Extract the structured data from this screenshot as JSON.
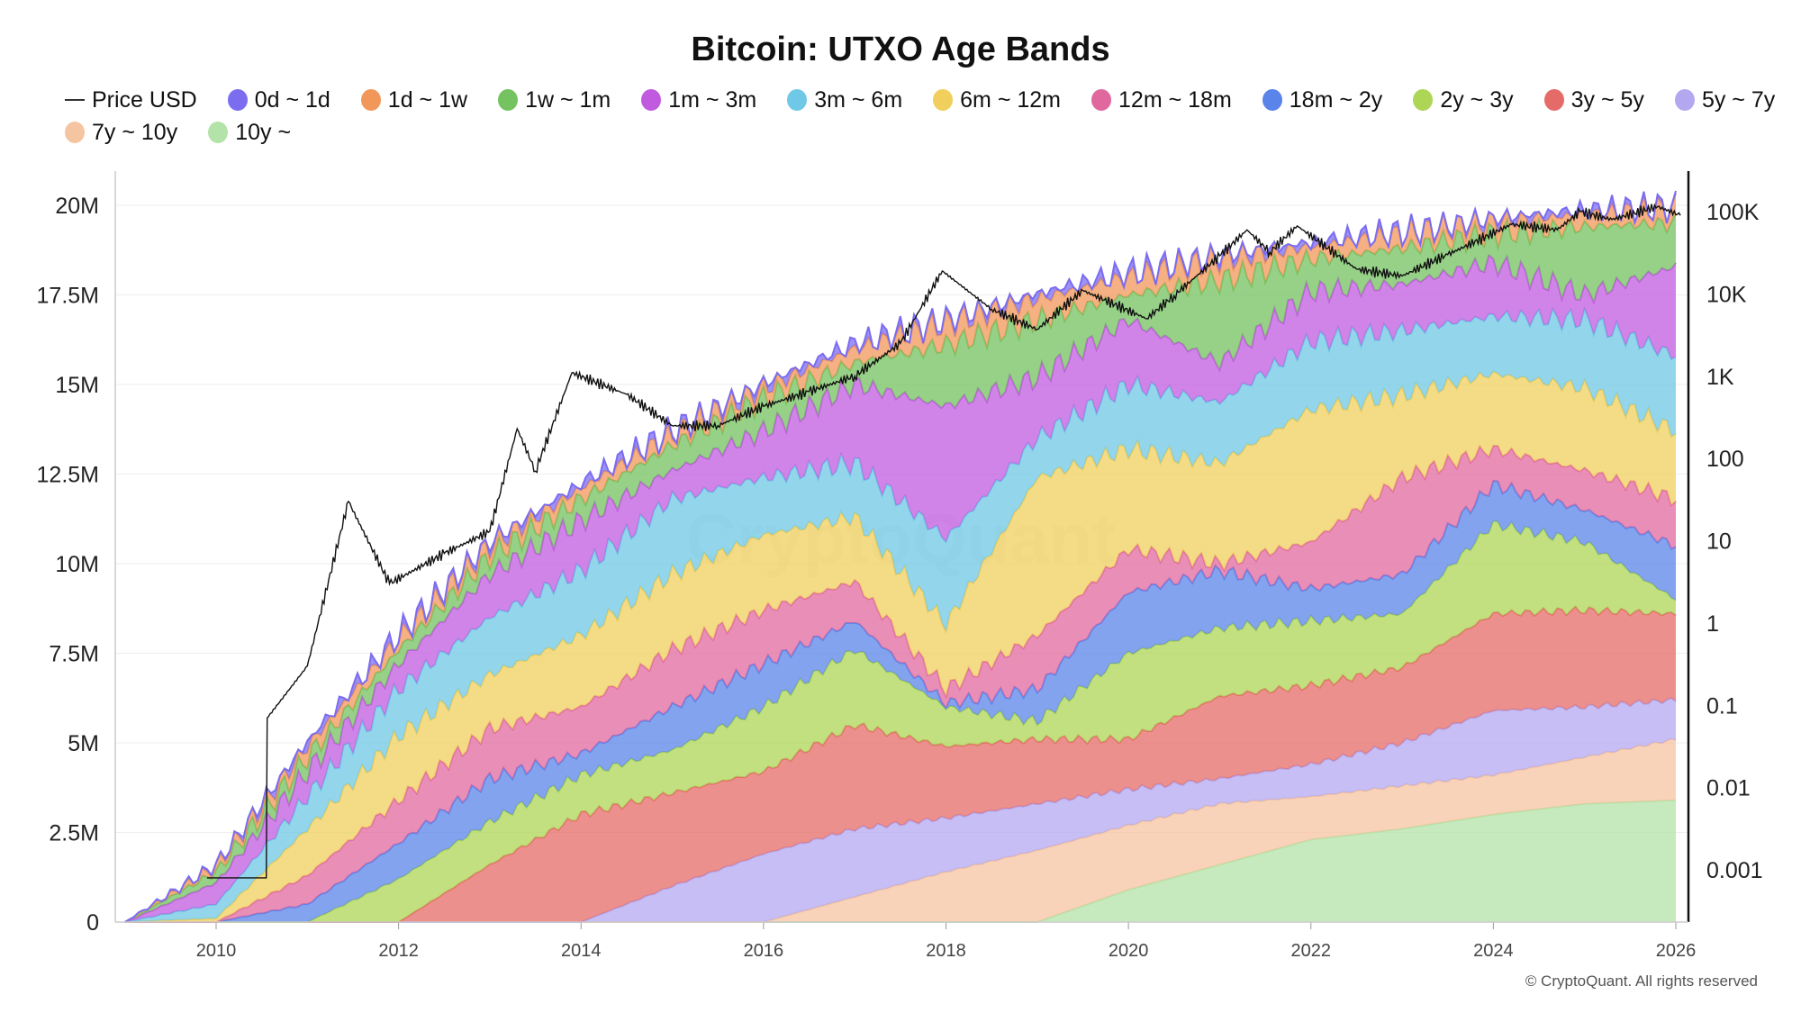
{
  "chart_data": {
    "type": "area",
    "stacked": true,
    "title": "Bitcoin: UTXO Age Bands",
    "xlabel": "",
    "ylabel": "",
    "x_ticks": [
      "2010",
      "2012",
      "2014",
      "2016",
      "2018",
      "2020",
      "2022",
      "2024",
      "2026"
    ],
    "y_ticks": [
      "0",
      "2.5M",
      "5M",
      "7.5M",
      "10M",
      "12.5M",
      "15M",
      "17.5M",
      "20M"
    ],
    "y2_ticks": [
      "0.001",
      "0.01",
      "0.1",
      "1",
      "10",
      "100",
      "1K",
      "10K",
      "100K"
    ],
    "ylim": [
      0,
      20000000
    ],
    "y2_scale": "log",
    "y2lim": [
      0.001,
      100000
    ],
    "grid": true,
    "legend_position": "top-left",
    "years": [
      2009,
      2010,
      2011,
      2012,
      2013,
      2014,
      2015,
      2016,
      2017,
      2018,
      2019,
      2020,
      2021,
      2022,
      2023,
      2024,
      2025,
      2026
    ],
    "series_note": "cumulative = stacked top of each band in millions BTC, bands listed bottom to top",
    "series": [
      {
        "name": "10y ~",
        "color": "#b3e3a8",
        "cumulative": [
          0,
          0,
          0,
          0,
          0,
          0,
          0,
          0,
          0,
          0,
          0,
          0.9,
          1.6,
          2.3,
          2.6,
          3.0,
          3.3,
          3.4
        ]
      },
      {
        "name": "7y ~ 10y",
        "color": "#f5c4a1",
        "cumulative": [
          0,
          0,
          0,
          0,
          0,
          0,
          0,
          0,
          0.7,
          1.4,
          2.0,
          2.7,
          3.3,
          3.5,
          3.8,
          4.1,
          4.6,
          5.1
        ]
      },
      {
        "name": "5y ~ 7y",
        "color": "#b3a8f0",
        "cumulative": [
          0,
          0,
          0,
          0,
          0,
          0,
          1.0,
          1.9,
          2.6,
          2.9,
          3.3,
          3.7,
          4.0,
          4.4,
          5.0,
          5.9,
          6.0,
          6.2
        ]
      },
      {
        "name": "3y ~ 5y",
        "color": "#e56b68",
        "cumulative": [
          0,
          0,
          0,
          0,
          1.6,
          3.0,
          3.6,
          4.2,
          5.5,
          4.9,
          5.1,
          5.1,
          6.3,
          6.6,
          7.1,
          8.6,
          8.7,
          8.6
        ]
      },
      {
        "name": "2y ~ 3y",
        "color": "#aed656",
        "cumulative": [
          0,
          0,
          0,
          1.2,
          2.8,
          4.1,
          4.8,
          6.0,
          7.6,
          6.0,
          5.6,
          7.5,
          8.2,
          8.4,
          8.6,
          11.1,
          10.6,
          9.0
        ]
      },
      {
        "name": "18m ~ 2y",
        "color": "#5a84ea",
        "cumulative": [
          0,
          0,
          0.5,
          2.2,
          4.0,
          4.7,
          6.0,
          7.2,
          8.4,
          6.1,
          6.5,
          9.2,
          9.8,
          9.3,
          9.7,
          12.2,
          11.5,
          10.5
        ]
      },
      {
        "name": "12m ~ 18m",
        "color": "#e0689f",
        "cumulative": [
          0,
          0,
          1.3,
          3.4,
          5.4,
          6.0,
          7.6,
          8.7,
          9.5,
          6.5,
          8.0,
          10.4,
          10.0,
          10.6,
          12.4,
          13.2,
          12.6,
          11.8
        ]
      },
      {
        "name": "6m ~ 12m",
        "color": "#f0cf5c",
        "cumulative": [
          0,
          0.1,
          2.6,
          5.2,
          6.9,
          8.0,
          9.7,
          10.8,
          11.3,
          8.3,
          12.4,
          13.2,
          12.8,
          14.3,
          14.7,
          15.3,
          14.9,
          13.7
        ]
      },
      {
        "name": "3m ~ 6m",
        "color": "#6fc8e6",
        "cumulative": [
          0,
          0.5,
          3.5,
          6.5,
          8.5,
          9.8,
          11.8,
          12.4,
          12.8,
          10.7,
          13.5,
          15.0,
          14.5,
          16.2,
          16.5,
          16.9,
          16.8,
          15.8
        ]
      },
      {
        "name": "1m ~ 3m",
        "color": "#c05be0",
        "cumulative": [
          0,
          1.1,
          4.2,
          7.2,
          9.7,
          11.2,
          12.6,
          13.7,
          15.0,
          14.4,
          15.2,
          16.8,
          15.6,
          17.6,
          17.8,
          18.4,
          17.5,
          18.3
        ]
      },
      {
        "name": "1w ~ 1m",
        "color": "#74c260",
        "cumulative": [
          0,
          1.4,
          4.6,
          7.6,
          10.2,
          11.8,
          13.3,
          14.6,
          15.6,
          16.1,
          16.8,
          17.5,
          17.9,
          18.5,
          18.8,
          19.2,
          19.4,
          19.5
        ]
      },
      {
        "name": "1d ~ 1w",
        "color": "#f2975a",
        "cumulative": [
          0,
          1.55,
          4.9,
          7.9,
          10.5,
          12.1,
          13.6,
          14.9,
          16.0,
          16.7,
          17.4,
          18.0,
          18.5,
          18.85,
          19.2,
          19.55,
          19.75,
          19.92
        ]
      },
      {
        "name": "0d ~ 1d",
        "color": "#7b6cf0",
        "cumulative": [
          0,
          1.6,
          5.0,
          8.0,
          10.6,
          12.2,
          13.7,
          15.0,
          16.1,
          16.8,
          17.5,
          18.1,
          18.6,
          18.9,
          19.25,
          19.6,
          19.8,
          19.97
        ]
      }
    ],
    "price": {
      "name": "Price USD",
      "color": "#111111",
      "points": [
        [
          2009.9,
          0.0008
        ],
        [
          2010.55,
          0.0008
        ],
        [
          2010.56,
          0.07
        ],
        [
          2011.0,
          0.3
        ],
        [
          2011.45,
          30
        ],
        [
          2011.9,
          3
        ],
        [
          2012.5,
          7
        ],
        [
          2013.0,
          13
        ],
        [
          2013.3,
          230
        ],
        [
          2013.5,
          70
        ],
        [
          2013.9,
          1100
        ],
        [
          2014.5,
          600
        ],
        [
          2015.0,
          250
        ],
        [
          2015.5,
          250
        ],
        [
          2016.0,
          430
        ],
        [
          2016.5,
          650
        ],
        [
          2017.0,
          1000
        ],
        [
          2017.5,
          2500
        ],
        [
          2017.96,
          19000
        ],
        [
          2018.5,
          6500
        ],
        [
          2019.0,
          3700
        ],
        [
          2019.5,
          11000
        ],
        [
          2020.2,
          5000
        ],
        [
          2020.5,
          9500
        ],
        [
          2021.0,
          29000
        ],
        [
          2021.3,
          60000
        ],
        [
          2021.55,
          32000
        ],
        [
          2021.85,
          67000
        ],
        [
          2022.5,
          20000
        ],
        [
          2023.0,
          16500
        ],
        [
          2023.5,
          30000
        ],
        [
          2024.2,
          70000
        ],
        [
          2024.7,
          60000
        ],
        [
          2024.95,
          100000
        ],
        [
          2025.3,
          80000
        ],
        [
          2025.8,
          115000
        ],
        [
          2026.05,
          90000
        ]
      ]
    }
  },
  "legend": [
    "Price USD",
    "0d ~ 1d",
    "1d ~ 1w",
    "1w ~ 1m",
    "1m ~ 3m",
    "3m ~ 6m",
    "6m ~ 12m",
    "12m ~ 18m",
    "18m ~ 2y",
    "2y ~ 3y",
    "3y ~ 5y",
    "5y ~ 7y",
    "7y ~ 10y",
    "10y ~"
  ],
  "watermark": "CryptoQuant",
  "footer": "© CryptoQuant. All rights reserved"
}
